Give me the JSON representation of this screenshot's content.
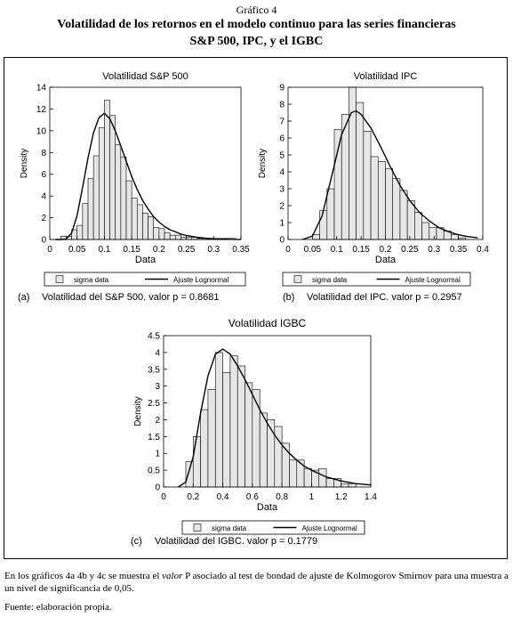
{
  "figure_label": "Gráfico 4",
  "title_line1": "Volatilidad de los retornos en el modelo continuo para las series financieras",
  "title_line2": "S&P 500, IPC, y el IGBC",
  "note": {
    "before": "En los gráficos 4a 4b y 4c se muestra el ",
    "italic": "valor",
    "after": " P asociado al test de bondad de ajuste de Kolmogorov Smirnov para una muestra a un nivel de significancia de 0,05."
  },
  "source": "Fuente: elaboración propia.",
  "chart_data": [
    {
      "type": "bar",
      "title": "Volatilidad S&P 500",
      "xlabel": "Data",
      "ylabel": "Density",
      "xlim": [
        0,
        0.35
      ],
      "ylim": [
        0,
        14
      ],
      "xticks": [
        0,
        0.05,
        0.1,
        0.15,
        0.2,
        0.25,
        0.3,
        0.35
      ],
      "xtick_labels": [
        "0",
        "0.05",
        "0.1",
        "0.15",
        "0.2",
        "0.25",
        "0.3",
        "0.35"
      ],
      "yticks": [
        0,
        2,
        4,
        6,
        8,
        10,
        12,
        14
      ],
      "bin_edges": [
        0.02,
        0.03,
        0.04,
        0.05,
        0.06,
        0.07,
        0.08,
        0.09,
        0.1,
        0.11,
        0.12,
        0.13,
        0.14,
        0.15,
        0.16,
        0.17,
        0.18,
        0.19,
        0.2,
        0.21,
        0.22,
        0.23,
        0.24,
        0.25,
        0.26,
        0.27,
        0.28,
        0.29,
        0.3,
        0.31,
        0.32,
        0.33,
        0.34
      ],
      "values": [
        0.3,
        0.3,
        0.9,
        1.3,
        3.3,
        5.6,
        7.7,
        10.3,
        12.8,
        11.4,
        8.7,
        7.6,
        5.4,
        3.8,
        3.2,
        2.4,
        2.1,
        1.1,
        1.0,
        0.6,
        0.4,
        0.4,
        0.2,
        0.2,
        0.2,
        0.1,
        0.1,
        0.1,
        0.1,
        0.1,
        0.1,
        0.1
      ],
      "fit": {
        "name": "Ajuste Lognormal",
        "x": [
          0.01,
          0.02,
          0.03,
          0.04,
          0.05,
          0.06,
          0.07,
          0.08,
          0.09,
          0.1,
          0.11,
          0.12,
          0.13,
          0.14,
          0.15,
          0.16,
          0.17,
          0.18,
          0.19,
          0.2,
          0.21,
          0.22,
          0.23,
          0.24,
          0.25,
          0.27,
          0.29,
          0.31,
          0.33,
          0.35
        ],
        "y": [
          0,
          0,
          0.05,
          0.6,
          2.2,
          4.8,
          7.5,
          9.8,
          11.2,
          11.6,
          11.1,
          10.0,
          8.6,
          7.2,
          5.8,
          4.6,
          3.6,
          2.8,
          2.1,
          1.6,
          1.2,
          0.9,
          0.7,
          0.5,
          0.37,
          0.2,
          0.1,
          0.05,
          0.02,
          0.01
        ]
      },
      "legend": {
        "data": "sigma data",
        "fit": "Ajuste Lognormal",
        "position": "bottom"
      },
      "caption_tag": "(a)",
      "caption": "Volatilidad del S&P 500. valor p = 0.8681"
    },
    {
      "type": "bar",
      "title": "Volatilidad IPC",
      "xlabel": "Data",
      "ylabel": "Density",
      "xlim": [
        0,
        0.4
      ],
      "ylim": [
        0,
        9
      ],
      "xticks": [
        0,
        0.05,
        0.1,
        0.15,
        0.2,
        0.25,
        0.3,
        0.35,
        0.4
      ],
      "xtick_labels": [
        "0",
        "0.05",
        "0.1",
        "0.15",
        "0.2",
        "0.25",
        "0.3",
        "0.35",
        "0.4"
      ],
      "yticks": [
        0,
        1,
        2,
        3,
        4,
        5,
        6,
        7,
        8,
        9
      ],
      "bin_edges": [
        0.05,
        0.065,
        0.08,
        0.095,
        0.11,
        0.125,
        0.14,
        0.155,
        0.17,
        0.185,
        0.2,
        0.215,
        0.23,
        0.245,
        0.26,
        0.275,
        0.29,
        0.305,
        0.32,
        0.335,
        0.35,
        0.365
      ],
      "values": [
        0.3,
        1.7,
        3.0,
        6.5,
        7.4,
        9.0,
        8.1,
        6.4,
        4.9,
        4.6,
        4.2,
        3.6,
        2.9,
        2.3,
        1.6,
        1.0,
        0.7,
        0.7,
        0.5,
        0.3,
        0.1
      ],
      "fit": {
        "name": "Ajuste Lognormal",
        "x": [
          0.03,
          0.05,
          0.07,
          0.09,
          0.11,
          0.13,
          0.14,
          0.15,
          0.17,
          0.19,
          0.21,
          0.23,
          0.25,
          0.27,
          0.29,
          0.31,
          0.33,
          0.35,
          0.37,
          0.39
        ],
        "y": [
          0,
          0.2,
          1.4,
          3.8,
          6.2,
          7.5,
          7.6,
          7.4,
          6.6,
          5.5,
          4.3,
          3.2,
          2.3,
          1.6,
          1.1,
          0.7,
          0.45,
          0.28,
          0.17,
          0.1
        ]
      },
      "legend": {
        "data": "sigma data",
        "fit": "Ajuste Lognormal",
        "position": "bottom"
      },
      "caption_tag": "(b)",
      "caption": "Volatilidad del IPC. valor p = 0.2957"
    },
    {
      "type": "bar",
      "title": "Volatilidad IGBC",
      "xlabel": "Data",
      "ylabel": "Density",
      "xlim": [
        0,
        1.4
      ],
      "ylim": [
        0,
        4.5
      ],
      "xticks": [
        0,
        0.2,
        0.4,
        0.6,
        0.8,
        1,
        1.2,
        1.4
      ],
      "xtick_labels": [
        "0",
        "0.2",
        "0.4",
        "0.6",
        "0.8",
        "1",
        "1.2",
        "1.4"
      ],
      "yticks": [
        0,
        0.5,
        1,
        1.5,
        2,
        2.5,
        3,
        3.5,
        4,
        4.5
      ],
      "bin_edges": [
        0.15,
        0.2,
        0.25,
        0.3,
        0.35,
        0.4,
        0.45,
        0.5,
        0.55,
        0.6,
        0.65,
        0.7,
        0.75,
        0.8,
        0.85,
        0.9,
        0.95,
        1.0,
        1.05,
        1.1,
        1.15,
        1.2,
        1.25,
        1.3
      ],
      "values": [
        0.75,
        1.5,
        2.3,
        2.9,
        4.0,
        3.4,
        3.9,
        3.6,
        3.1,
        2.9,
        2.2,
        2.0,
        1.8,
        1.3,
        0.8,
        0.8,
        0.55,
        0.5,
        0.55,
        0.25,
        0.25,
        0.1,
        0.1
      ],
      "fit": {
        "name": "Ajuste Lognormal",
        "x": [
          0.1,
          0.15,
          0.2,
          0.25,
          0.3,
          0.35,
          0.4,
          0.45,
          0.5,
          0.55,
          0.6,
          0.65,
          0.7,
          0.75,
          0.8,
          0.85,
          0.9,
          0.95,
          1.0,
          1.1,
          1.2,
          1.3,
          1.4
        ],
        "y": [
          0,
          0.15,
          0.9,
          2.2,
          3.3,
          3.95,
          4.1,
          3.95,
          3.6,
          3.2,
          2.75,
          2.3,
          1.9,
          1.55,
          1.25,
          1.0,
          0.8,
          0.62,
          0.5,
          0.3,
          0.18,
          0.1,
          0.06
        ]
      },
      "legend": {
        "data": "sigma data",
        "fit": "Ajuste Lognormal",
        "position": "bottom"
      },
      "caption_tag": "(c)",
      "caption": "Volatilidad del IGBC. valor p = 0.1779"
    }
  ]
}
